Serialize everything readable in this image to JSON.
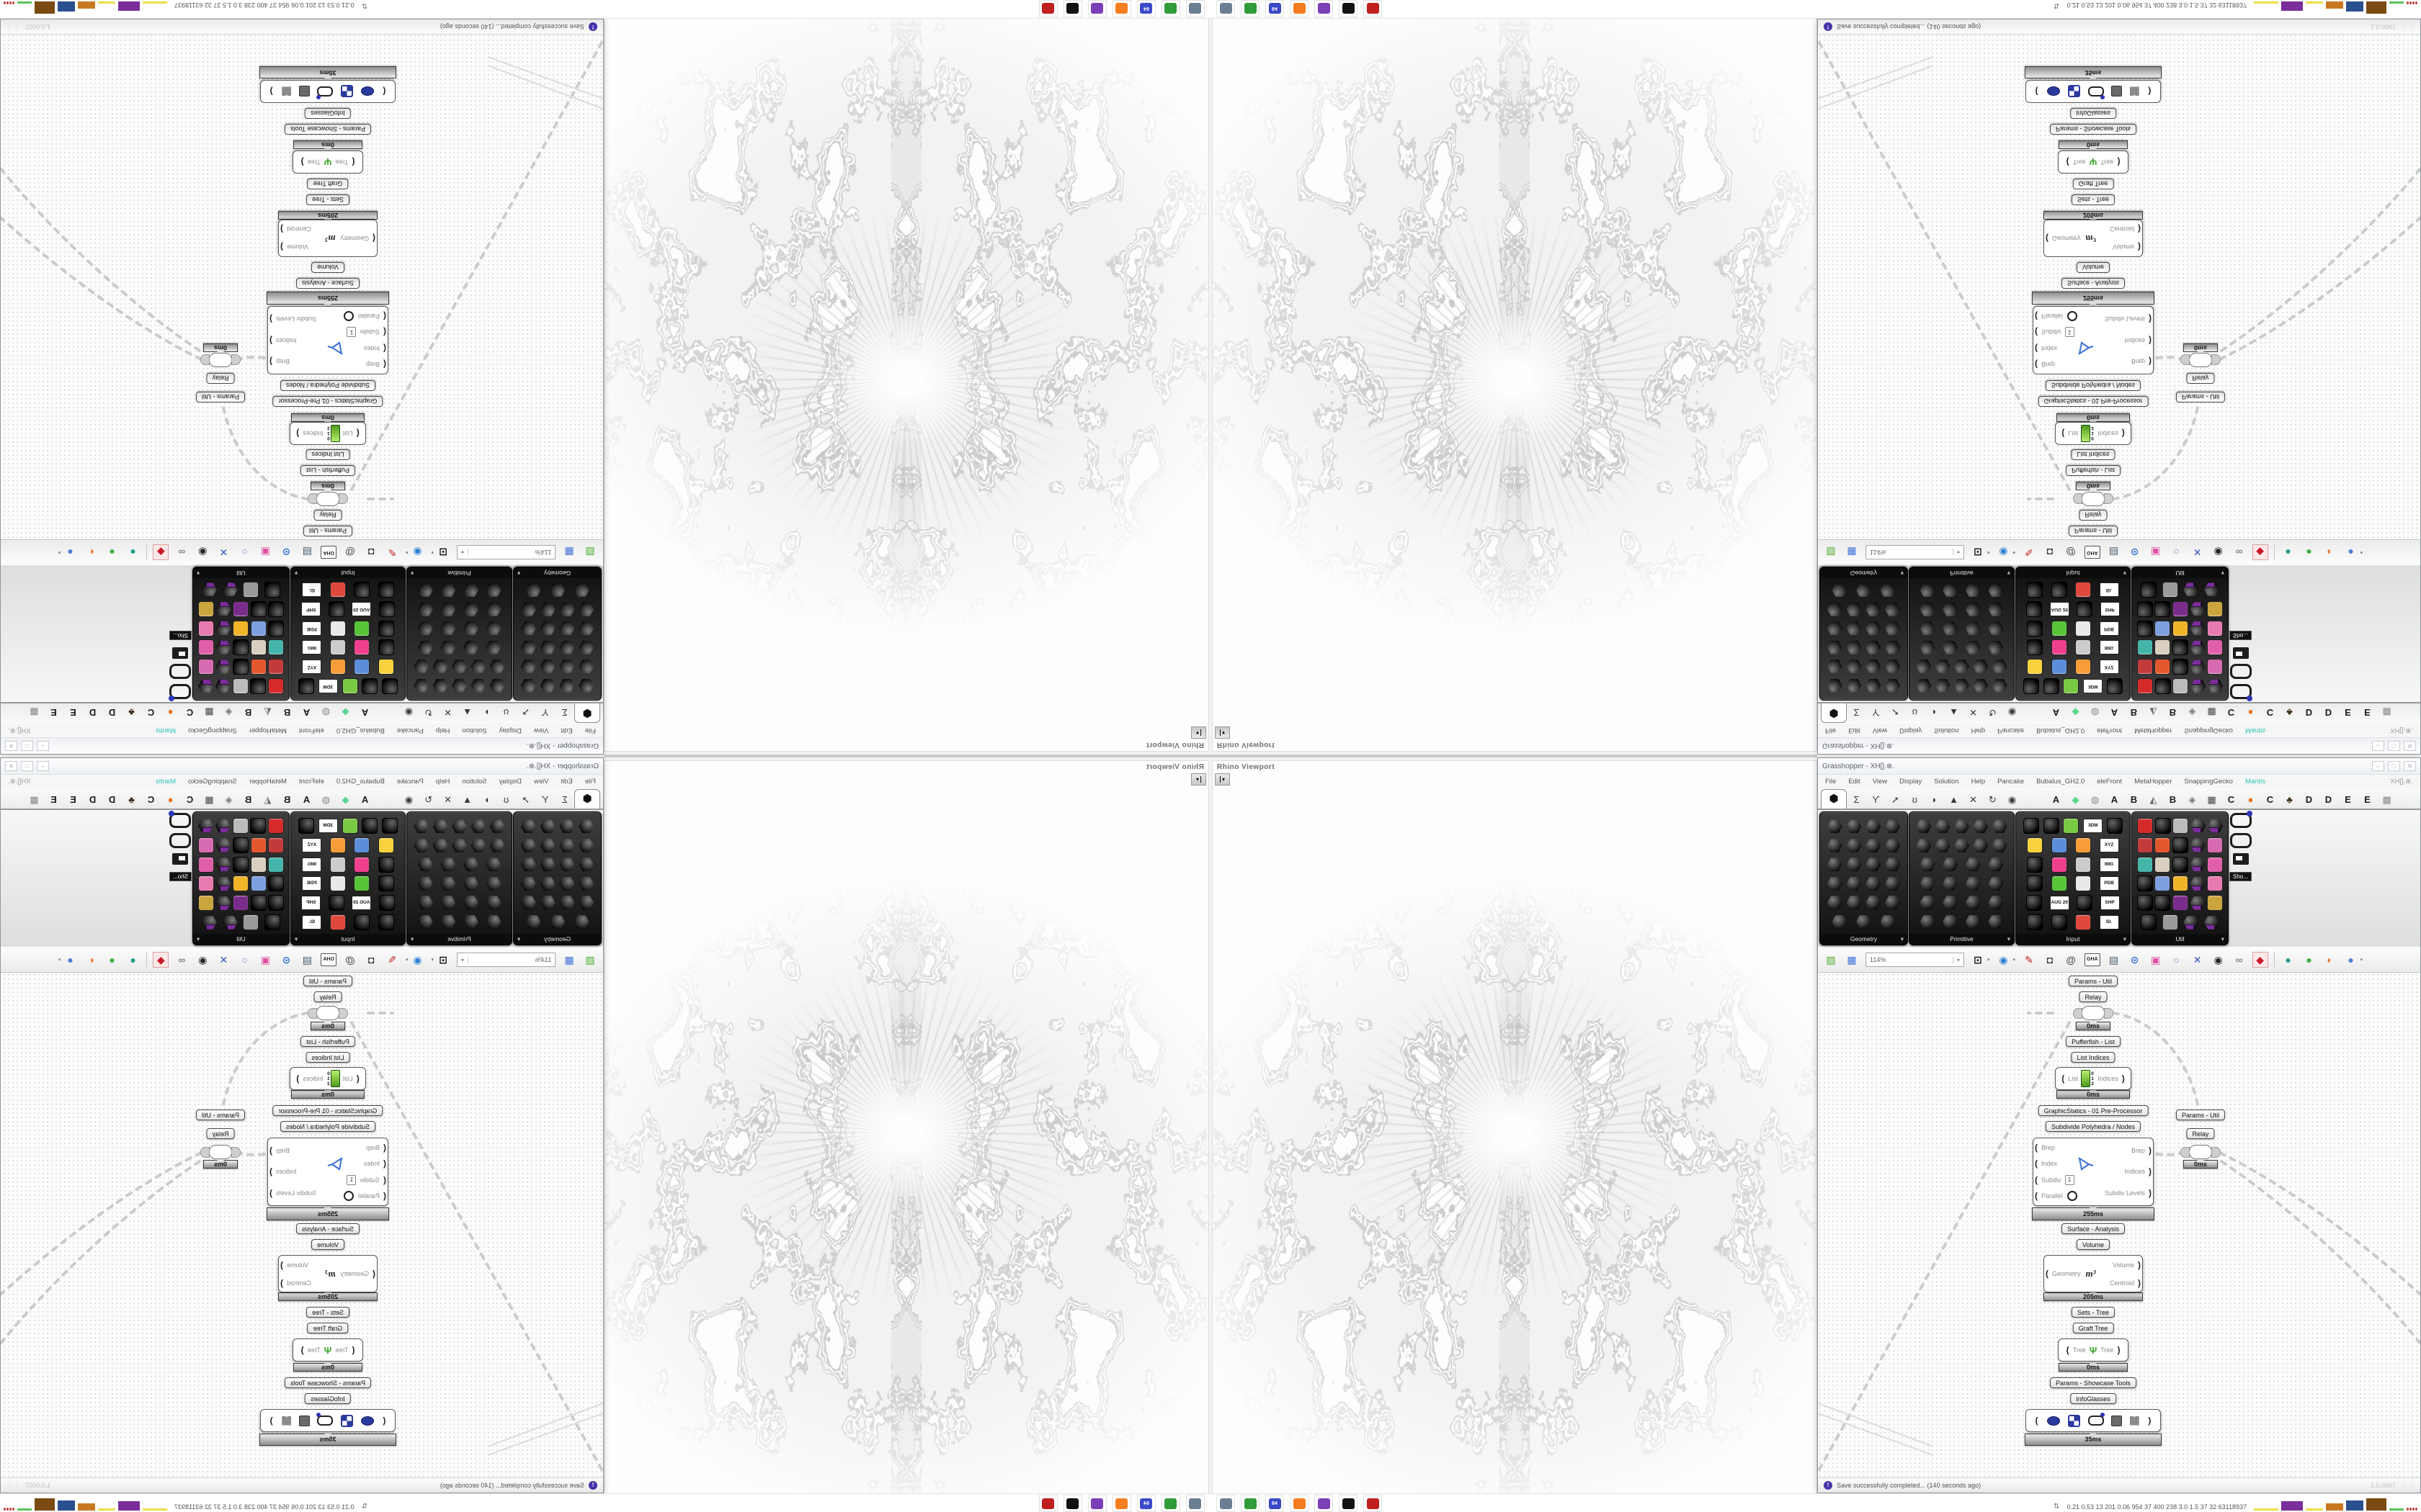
{
  "screen": {
    "rhino": {
      "viewport_title": "Rhino Viewport"
    },
    "gh": {
      "title": "Grasshopper - XH[].⊕.",
      "window_buttons": [
        "‒",
        "□",
        "✕"
      ],
      "menu": {
        "items": [
          {
            "label": "File"
          },
          {
            "label": "Edit"
          },
          {
            "label": "View"
          },
          {
            "label": "Display"
          },
          {
            "label": "Solution"
          },
          {
            "label": "Help"
          },
          {
            "label": "Pancake"
          },
          {
            "label": "Bubalus_GH2.0"
          },
          {
            "label": "eleFront"
          },
          {
            "label": "MetaHopper"
          },
          {
            "label": "SnappingGecko"
          },
          {
            "label": "Mantis",
            "color": "#2ec4b6"
          }
        ],
        "right_text": "XH[].⊕."
      },
      "tabs": {
        "left": [
          {
            "name": "params",
            "glyph": "⬢",
            "active": true
          },
          {
            "name": "maths",
            "glyph": "Σ"
          },
          {
            "name": "sets",
            "glyph": "ϒ"
          },
          {
            "name": "vector",
            "glyph": "➚"
          },
          {
            "name": "curve",
            "glyph": "ʊ"
          },
          {
            "name": "surface",
            "glyph": "◗"
          },
          {
            "name": "mesh",
            "glyph": "▲"
          },
          {
            "name": "intersect",
            "glyph": "✕"
          },
          {
            "name": "transform",
            "glyph": "↻"
          },
          {
            "name": "display",
            "glyph": "◉"
          }
        ],
        "right": [
          {
            "name": "tab-a1",
            "glyph": "A"
          },
          {
            "name": "gem-tab",
            "glyph": "◆",
            "color": "#58d68d"
          },
          {
            "name": "flower-tab",
            "glyph": "◍",
            "color": "#8a8a8a"
          },
          {
            "name": "tab-a2",
            "glyph": "A"
          },
          {
            "name": "tab-b1",
            "glyph": "B"
          },
          {
            "name": "mountain-tab",
            "glyph": "◭",
            "color": "#6a6a6a"
          },
          {
            "name": "tab-b2",
            "glyph": "B"
          },
          {
            "name": "shield-tab",
            "glyph": "◈",
            "color": "#777777"
          },
          {
            "name": "grid-tab",
            "glyph": "▦",
            "color": "#444444"
          },
          {
            "name": "tab-c1",
            "glyph": "C"
          },
          {
            "name": "dot-tab",
            "glyph": "●",
            "color": "#e8711a"
          },
          {
            "name": "tab-c2",
            "glyph": "C"
          },
          {
            "name": "bird-tab",
            "glyph": "♣",
            "color": "#3a2a1a"
          },
          {
            "name": "tab-d1",
            "glyph": "D"
          },
          {
            "name": "tab-d2",
            "glyph": "D"
          },
          {
            "name": "tab-e1",
            "glyph": "E"
          },
          {
            "name": "tab-e2",
            "glyph": "E"
          },
          {
            "name": "checker-tab",
            "glyph": "▩",
            "color": "#888888"
          }
        ]
      },
      "panels": [
        {
          "label": "Geometry",
          "rows": [
            [
              "h",
              "h",
              "h",
              "h"
            ],
            [
              "h",
              "h",
              "h",
              "h"
            ],
            [
              "h",
              "h",
              "h",
              "h"
            ],
            [
              "h",
              "h",
              "h",
              "h"
            ],
            [
              "h",
              "h",
              "h",
              "h"
            ],
            [
              "h",
              "h",
              "h"
            ]
          ]
        },
        {
          "label": "Primitive",
          "rows": [
            [
              "h",
              "h",
              "h",
              "h",
              "h"
            ],
            [
              "h",
              "h",
              "h",
              "h",
              "h"
            ],
            [
              "h",
              "h",
              "h",
              "h"
            ],
            [
              "h",
              "h",
              "h",
              "h"
            ],
            [
              "h",
              "h",
              "h",
              "h"
            ],
            [
              "h",
              "h",
              "h",
              "h"
            ]
          ]
        },
        {
          "label": "Input",
          "rows": [
            [
              "b",
              "b",
              "c:#7ac943",
              "t:3DM",
              "b"
            ],
            [
              "c:#f7d23e",
              "c:#5b8dd9",
              "c:#f79d38",
              "t:XYZ"
            ],
            [
              "b",
              "c:#ef3f8f",
              "c:#cccccc",
              "t:IMG"
            ],
            [
              "b",
              "c:#58c437",
              "c:#e9e9e9",
              "t:PDB"
            ],
            [
              "b",
              "t:AUG 20",
              "b",
              "t:SHP"
            ],
            [
              "b",
              "b",
              "c:#e0483b",
              "t:ID."
            ]
          ]
        },
        {
          "label": "Util",
          "rows": [
            [
              "c:#d42a2a",
              "b",
              "c:#bbbbbb",
              "hp",
              "hp"
            ],
            [
              "c:#c23b3b",
              "c:#e4572e",
              "b",
              "hp",
              "c:#d76bb1"
            ],
            [
              "c:#45b5aa",
              "c:#d9d0c0",
              "b",
              "hp",
              "c:#e05fa9"
            ],
            [
              "b",
              "c:#7d9fe0",
              "c:#f0b429",
              "hp",
              "c:#e87bb0"
            ],
            [
              "b",
              "b",
              "c:#7b2d8b",
              "hp",
              "c:#caa53d"
            ],
            [
              "b",
              "c:#9a9a9a",
              "hp",
              "hp"
            ]
          ]
        }
      ],
      "showcase": {
        "tooltip": "Sho..."
      },
      "toolbar": {
        "zoom_value": "114%",
        "icons": [
          {
            "name": "open-file",
            "g": "▨",
            "c": "#4caf30"
          },
          {
            "name": "save-file",
            "g": "▦",
            "c": "#3d6fd6"
          },
          {
            "name": "zoom-combo",
            "k": "zoom"
          },
          {
            "name": "zoom-extents",
            "g": "⊡",
            "c": "#111111",
            "caret": true
          },
          {
            "name": "preview-eye",
            "g": "◉",
            "c": "#2a7fd4",
            "caret": true
          },
          {
            "name": "red-pen",
            "g": "✎",
            "c": "#c22222"
          },
          {
            "name": "speaker",
            "g": "◘",
            "c": "#333333"
          },
          {
            "name": "at-sign",
            "g": "@",
            "c": "#555555"
          },
          {
            "name": "gha-chip",
            "k": "chip",
            "t": "GHA"
          },
          {
            "name": "export-doc",
            "g": "▤",
            "c": "#445566"
          },
          {
            "name": "search",
            "g": "⊙",
            "c": "#2a6fd4"
          },
          {
            "name": "gift-box",
            "g": "▣",
            "c": "#e050a0"
          },
          {
            "name": "balloons",
            "g": "○",
            "c": "#8a6fd4"
          },
          {
            "name": "dna",
            "g": "✕",
            "c": "#3a55c4"
          },
          {
            "name": "sphere-ring",
            "g": "◉",
            "c": "#222222"
          },
          {
            "name": "rings",
            "g": "∞",
            "c": "#888888"
          },
          {
            "name": "red-gem",
            "g": "◆",
            "c": "#c81828",
            "sel": true
          },
          {
            "name": "sep",
            "k": "sep"
          },
          {
            "name": "ball-teal",
            "g": "●",
            "c": "#1f9e8e"
          },
          {
            "name": "ball-green",
            "g": "●",
            "c": "#3fae3f"
          },
          {
            "name": "ball-orange",
            "g": "◐",
            "c": "#e8711a"
          },
          {
            "name": "ball-blue",
            "g": "●",
            "c": "#4a7fd4",
            "caret": true
          }
        ]
      },
      "nodes": {
        "group1": "Params - Util",
        "relay1": "Relay",
        "time1": "0ms",
        "group2": "Pufferfish - List",
        "item2": "List Indices",
        "list": {
          "in": "List",
          "out": "Indices",
          "marks": "0 1 2",
          "time": "0ms"
        },
        "group3": "GraphicStatics - 01 Pre-Processor",
        "item3": "Subdivide Polyhedra / Nodes",
        "subdivide": {
          "inputs": [
            "Brep",
            "Index",
            "Subdiv",
            "Parallel"
          ],
          "value": "1",
          "outputs": [
            "Brep",
            "Indices",
            "Subdiv Levels"
          ],
          "time": "255ms"
        },
        "group4": "Surface - Analysis",
        "item4": "Volume",
        "volume": {
          "input": "Geometry",
          "glyph": "m³",
          "outputs": [
            "Volume",
            "Centroid"
          ],
          "time": "205ms"
        },
        "group5": "Sets - Tree",
        "item5": "Graft Tree",
        "graft": {
          "in": "Tree",
          "out": "Tree",
          "time": "0ms"
        },
        "group6": "Params - Showcase Tools",
        "item6": "InfoGlasses",
        "info": {
          "time": "35ms"
        },
        "right": {
          "group": "Params - Util",
          "relay": "Relay",
          "time": "0ms"
        }
      },
      "status": {
        "message": "Save successfully completed... (140 seconds ago)",
        "version": "1.0.0007"
      }
    },
    "taskbar": {
      "apps": [
        {
          "name": "system-monitor",
          "color": "#6c7f92"
        },
        {
          "name": "retro-device",
          "color": "#2f9b3a"
        },
        {
          "name": "floppy-64",
          "color": "#3b49c8",
          "label": "64"
        },
        {
          "name": "firefox",
          "color": "#f57c1f"
        },
        {
          "name": "purple-owl",
          "color": "#7a3fb5"
        },
        {
          "name": "vector-app",
          "color": "#111111"
        },
        {
          "name": "red-app",
          "color": "#c01f1f"
        }
      ],
      "stats_glyph": "⇅",
      "stats_text": "0.21 0.53   13   201 0.06 954   37   400   238   3.0   1.5   37   32   63118937",
      "charts": [
        {
          "name": "yellow-line",
          "c": "#e7e04a",
          "w": 34,
          "h": 3,
          "k": "line"
        },
        {
          "name": "purple-bars",
          "c": "#7b2d9b",
          "w": 30,
          "h": 13,
          "k": "bars"
        },
        {
          "name": "yellow-line-2",
          "c": "#e7e04a",
          "w": 24,
          "h": 3,
          "k": "line"
        },
        {
          "name": "orange-block",
          "c": "#c87820",
          "w": 24,
          "h": 10,
          "k": "block"
        },
        {
          "name": "blue-block",
          "c": "#2a4f8f",
          "w": 24,
          "h": 14,
          "k": "block"
        },
        {
          "name": "brown-block",
          "c": "#7a4a12",
          "w": 28,
          "h": 17,
          "k": "block"
        },
        {
          "name": "green-line",
          "c": "#59c459",
          "w": 20,
          "h": 3,
          "k": "line"
        },
        {
          "name": "red-dots",
          "c": "#c04040",
          "w": 16,
          "h": 4,
          "k": "dots"
        }
      ]
    }
  }
}
